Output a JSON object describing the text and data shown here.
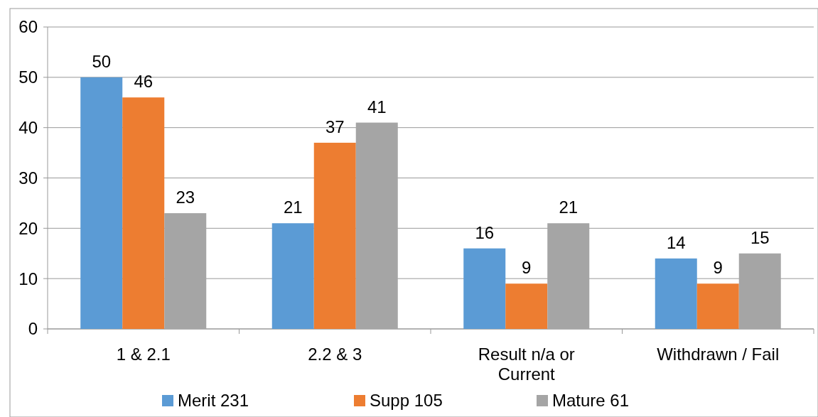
{
  "chart_data": {
    "type": "bar",
    "categories": [
      "1 & 2.1",
      "2.2 & 3",
      "Result n/a or Current",
      "Withdrawn / Fail"
    ],
    "series": [
      {
        "name": "Merit 231",
        "color": "#5b9bd5",
        "values": [
          50,
          21,
          16,
          14
        ]
      },
      {
        "name": "Supp 105",
        "color": "#ed7d31",
        "values": [
          46,
          37,
          9,
          9
        ]
      },
      {
        "name": "Mature 61",
        "color": "#a5a5a5",
        "values": [
          23,
          41,
          21,
          15
        ]
      }
    ],
    "ylim": [
      0,
      60
    ],
    "yticks": [
      0,
      10,
      20,
      30,
      40,
      50,
      60
    ],
    "grid": "y",
    "legend": "bottom",
    "data_labels": true
  }
}
